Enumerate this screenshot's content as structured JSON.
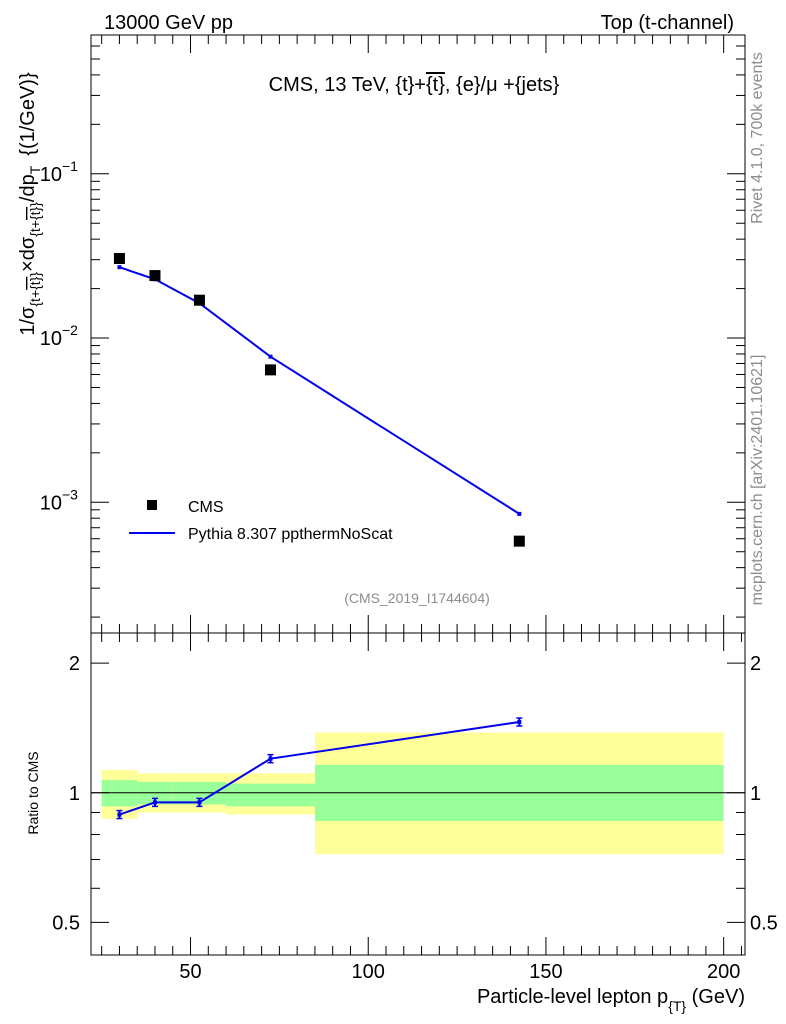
{
  "header": {
    "left": "13000 GeV pp",
    "right": "Top (t-channel)"
  },
  "side": {
    "rivet": "Rivet 4.1.0,  700k events",
    "mcplots": "mcplots.cern.ch [arXiv:2401.10621]"
  },
  "chart_data": [
    {
      "type": "scatter",
      "title": "CMS, 13 TeV, {t}+{t̅}, {e}/μ +{jets}",
      "title_parts": [
        "CMS, 13 TeV, {t}+",
        "{t}",
        ", {e}/μ +{jets}"
      ],
      "ylabel": "1/σ{t+t̅} × dσ{t+t̅}/dp_T  {(1/GeV)}",
      "ylabel_parts": [
        "1/σ",
        "{t+",
        "{t}",
        "}",
        "×dσ",
        "{t+",
        "{t}",
        "}",
        "/dp",
        "T",
        "{(1/GeV)}"
      ],
      "yscale": "log",
      "xlim": [
        22,
        206
      ],
      "ylim": [
        0.00016,
        0.7
      ],
      "y_tick_labels": [
        {
          "value": 0.1,
          "mantissa": "10",
          "exponent": "−1"
        },
        {
          "value": 0.01,
          "mantissa": "10",
          "exponent": "−2"
        },
        {
          "value": 0.001,
          "mantissa": "10",
          "exponent": "−3"
        }
      ],
      "analysis_id": "(CMS_2019_I1744604)",
      "legend_position": "bottom-left",
      "series": [
        {
          "name": "CMS",
          "style": "markers",
          "x": [
            30,
            40,
            52.5,
            72.5,
            142.5
          ],
          "y": [
            0.0305,
            0.024,
            0.017,
            0.0064,
            0.00058
          ]
        },
        {
          "name": "Pythia 8.307 ppthermNoScat",
          "style": "line",
          "x": [
            30,
            40,
            52.5,
            72.5,
            142.5
          ],
          "y": [
            0.027,
            0.0228,
            0.0163,
            0.0077,
            0.00085
          ]
        }
      ]
    },
    {
      "type": "line",
      "ylabel": "Ratio to CMS",
      "xlabel": "Particle-level lepton p_T (GeV)",
      "xlabel_parts": [
        "Particle-level lepton p",
        "{T}",
        " (GeV)"
      ],
      "xlim": [
        22,
        206
      ],
      "ylim": [
        0.42,
        2.35
      ],
      "yscale": "log",
      "x_tick_labels": [
        "50",
        "100",
        "150",
        "200"
      ],
      "x_ticks": [
        50,
        100,
        150,
        200
      ],
      "y_tick_labels": [
        "0.5",
        "1",
        "2"
      ],
      "y_ticks": [
        0.5,
        1,
        2
      ],
      "reference_line": 1.0,
      "uncertainty_bands": [
        {
          "x_range": [
            25,
            35
          ],
          "inner": [
            0.93,
            1.07
          ],
          "outer": [
            0.87,
            1.13
          ]
        },
        {
          "x_range": [
            35,
            45
          ],
          "inner": [
            0.94,
            1.06
          ],
          "outer": [
            0.9,
            1.11
          ]
        },
        {
          "x_range": [
            45,
            60
          ],
          "inner": [
            0.94,
            1.06
          ],
          "outer": [
            0.9,
            1.11
          ]
        },
        {
          "x_range": [
            60,
            85
          ],
          "inner": [
            0.93,
            1.05
          ],
          "outer": [
            0.89,
            1.11
          ]
        },
        {
          "x_range": [
            85,
            200
          ],
          "inner": [
            0.86,
            1.16
          ],
          "outer": [
            0.72,
            1.38
          ]
        }
      ],
      "series": [
        {
          "name": "Pythia 8.307 ppthermNoScat",
          "style": "line",
          "x": [
            30,
            40,
            52.5,
            72.5,
            142.5
          ],
          "y": [
            0.89,
            0.95,
            0.95,
            1.2,
            1.46
          ]
        }
      ]
    }
  ],
  "colors": {
    "data": "#000000",
    "mc": "#0000ee",
    "band_inner": "#99ff99",
    "band_outer": "#ffff99"
  }
}
